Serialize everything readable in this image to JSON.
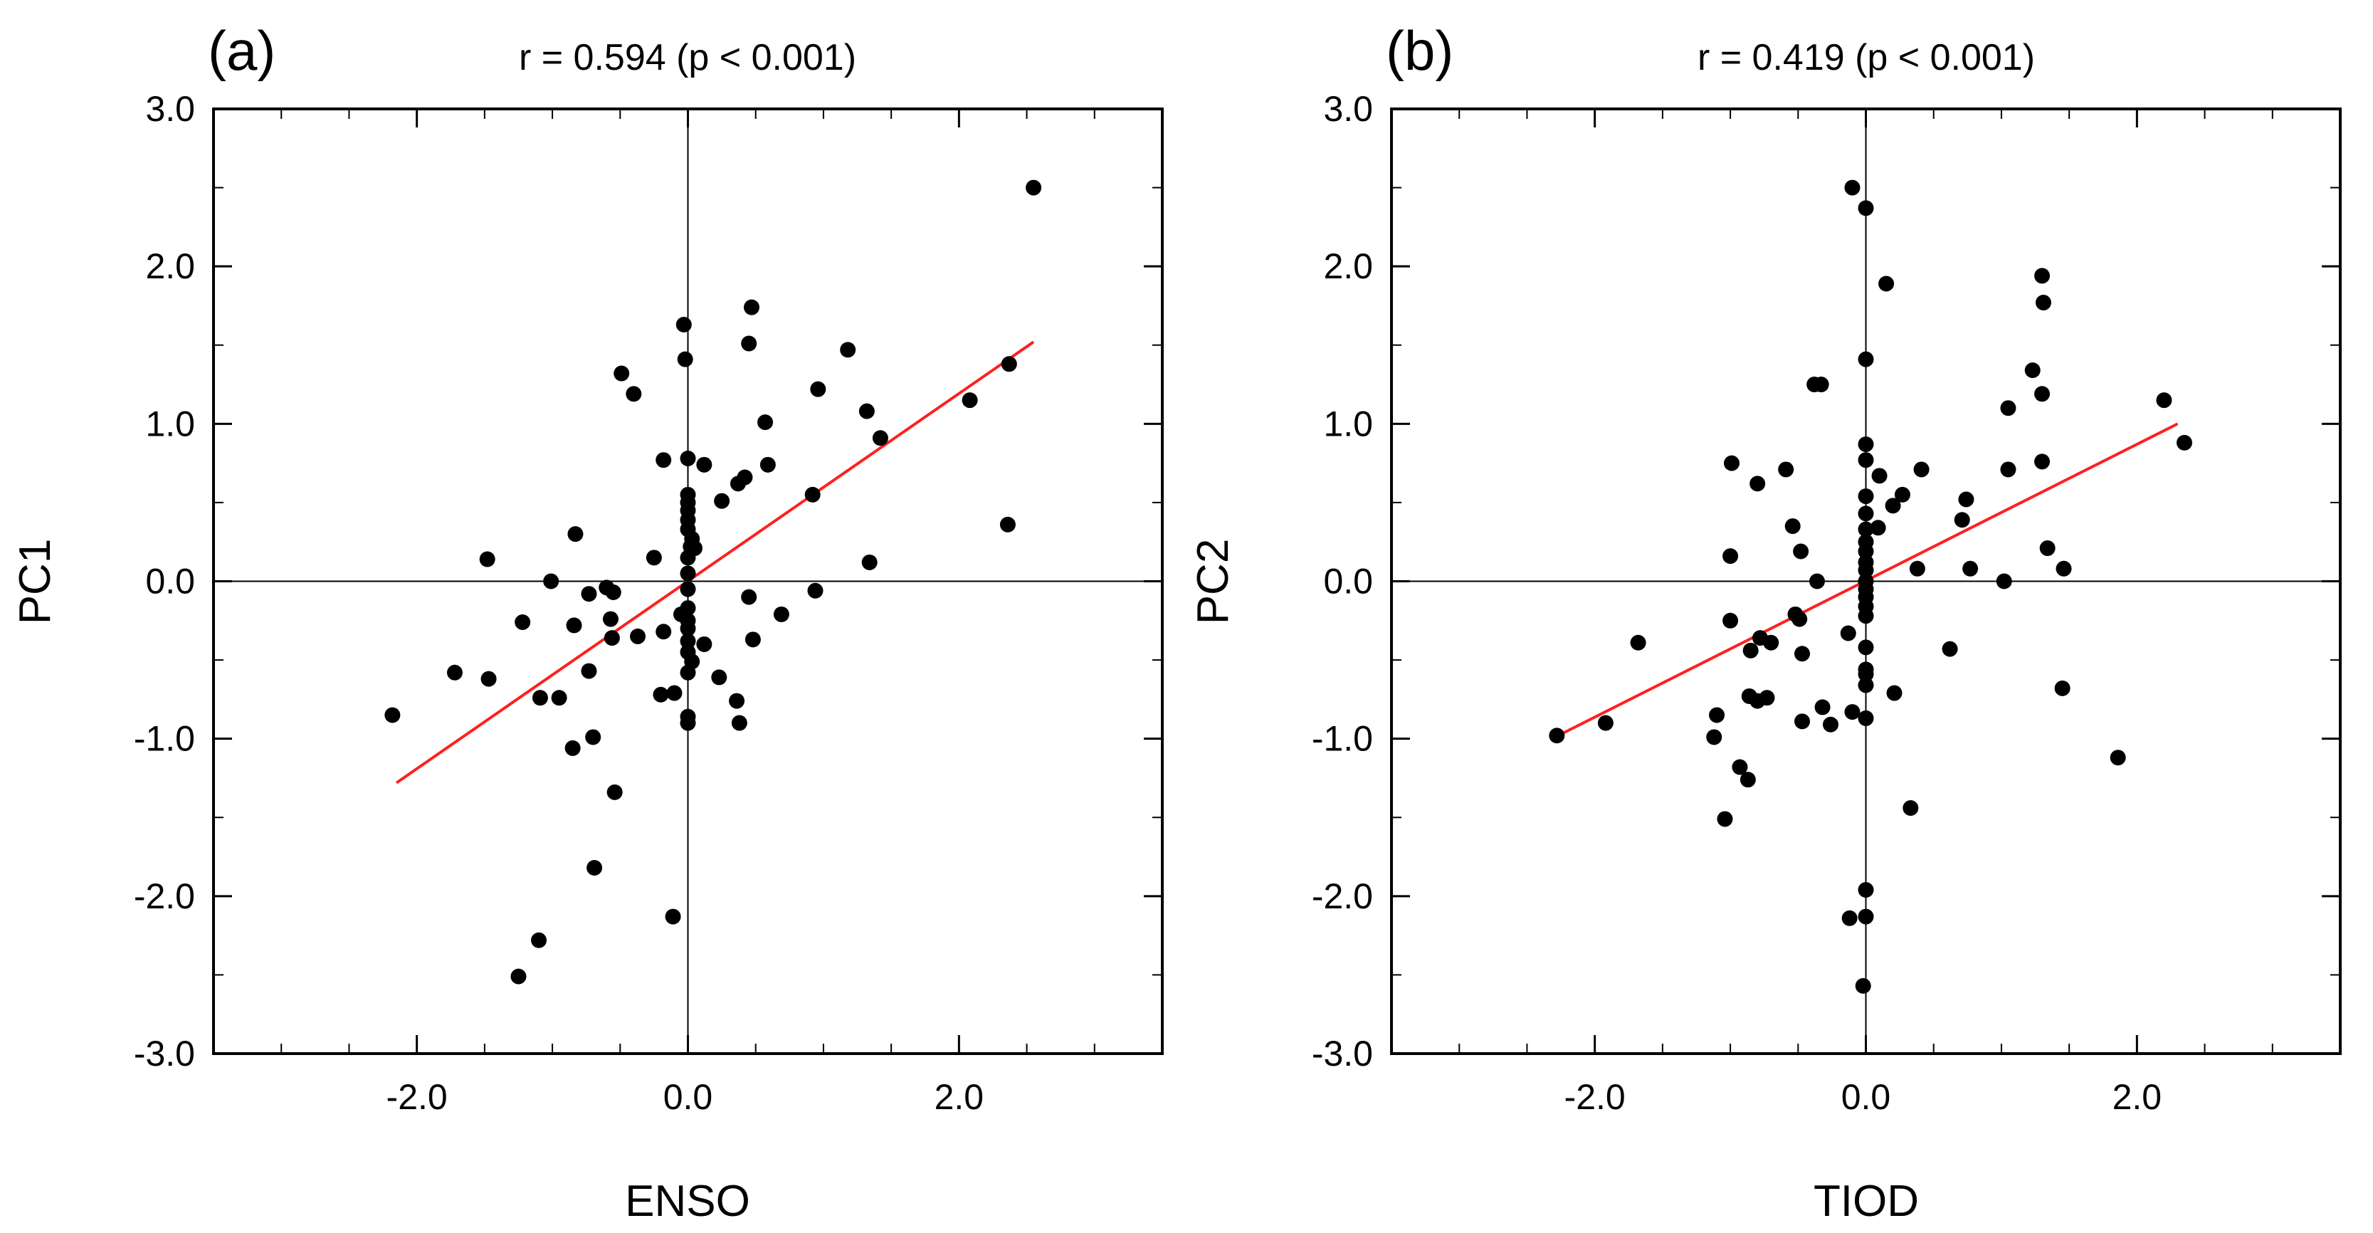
{
  "colors": {
    "points": "#000000",
    "regression": "#ff2020",
    "axes": "#000000"
  },
  "chart_data": [
    {
      "type": "scatter",
      "panel_label": "(a)",
      "title": "r = 0.594 (p < 0.001)",
      "xlabel": "ENSO",
      "ylabel": "PC1",
      "xlim": [
        -3.5,
        3.5
      ],
      "ylim": [
        -3.0,
        3.0
      ],
      "x_ticks": [
        -2.0,
        0.0,
        2.0
      ],
      "x_tick_labels": [
        "-2.0",
        "0.0",
        "2.0"
      ],
      "y_ticks": [
        -3.0,
        -2.0,
        -1.0,
        0.0,
        1.0,
        2.0,
        3.0
      ],
      "y_tick_labels": [
        "-3.0",
        "-2.0",
        "-1.0",
        "0.0",
        "1.0",
        "2.0",
        "3.0"
      ],
      "zero_lines": true,
      "regression": {
        "x": [
          -2.15,
          2.55
        ],
        "y": [
          -1.28,
          1.52
        ]
      },
      "points": [
        [
          2.55,
          2.5
        ],
        [
          0.47,
          1.74
        ],
        [
          -0.03,
          1.63
        ],
        [
          0.45,
          1.51
        ],
        [
          1.18,
          1.47
        ],
        [
          -0.02,
          1.41
        ],
        [
          -0.49,
          1.32
        ],
        [
          2.37,
          1.38
        ],
        [
          -0.4,
          1.19
        ],
        [
          0.96,
          1.22
        ],
        [
          2.08,
          1.15
        ],
        [
          1.32,
          1.08
        ],
        [
          0.57,
          1.01
        ],
        [
          1.42,
          0.91
        ],
        [
          -0.18,
          0.77
        ],
        [
          0.0,
          0.78
        ],
        [
          0.12,
          0.74
        ],
        [
          0.59,
          0.74
        ],
        [
          0.42,
          0.66
        ],
        [
          0.37,
          0.62
        ],
        [
          0.92,
          0.55
        ],
        [
          0.0,
          0.55
        ],
        [
          0.0,
          0.5
        ],
        [
          0.25,
          0.51
        ],
        [
          0.0,
          0.45
        ],
        [
          0.0,
          0.39
        ],
        [
          0.0,
          0.33
        ],
        [
          0.03,
          0.27
        ],
        [
          0.02,
          0.22
        ],
        [
          -0.83,
          0.3
        ],
        [
          0.05,
          0.21
        ],
        [
          2.36,
          0.36
        ],
        [
          1.34,
          0.12
        ],
        [
          -1.48,
          0.14
        ],
        [
          0.0,
          0.15
        ],
        [
          -0.25,
          0.15
        ],
        [
          0.0,
          0.05
        ],
        [
          -1.01,
          0.0
        ],
        [
          -0.6,
          -0.04
        ],
        [
          -0.55,
          -0.07
        ],
        [
          -0.73,
          -0.08
        ],
        [
          0.0,
          -0.05
        ],
        [
          0.45,
          -0.1
        ],
        [
          0.94,
          -0.06
        ],
        [
          0.0,
          -0.17
        ],
        [
          -0.05,
          -0.21
        ],
        [
          -0.57,
          -0.24
        ],
        [
          0.0,
          -0.25
        ],
        [
          -1.22,
          -0.26
        ],
        [
          -0.84,
          -0.28
        ],
        [
          0.0,
          -0.3
        ],
        [
          -0.18,
          -0.32
        ],
        [
          0.69,
          -0.21
        ],
        [
          -0.37,
          -0.35
        ],
        [
          -0.56,
          -0.36
        ],
        [
          0.48,
          -0.37
        ],
        [
          0.0,
          -0.38
        ],
        [
          0.12,
          -0.4
        ],
        [
          0.0,
          -0.45
        ],
        [
          0.03,
          -0.51
        ],
        [
          -0.73,
          -0.57
        ],
        [
          0.0,
          -0.58
        ],
        [
          -1.72,
          -0.58
        ],
        [
          -1.47,
          -0.62
        ],
        [
          0.23,
          -0.61
        ],
        [
          -0.1,
          -0.71
        ],
        [
          -0.2,
          -0.72
        ],
        [
          -1.09,
          -0.74
        ],
        [
          -0.95,
          -0.74
        ],
        [
          0.36,
          -0.76
        ],
        [
          -2.18,
          -0.85
        ],
        [
          0.0,
          -0.86
        ],
        [
          0.0,
          -0.9
        ],
        [
          0.38,
          -0.9
        ],
        [
          -0.7,
          -0.99
        ],
        [
          -0.85,
          -1.06
        ],
        [
          -0.54,
          -1.34
        ],
        [
          -0.69,
          -1.82
        ],
        [
          -0.11,
          -2.13
        ],
        [
          -1.1,
          -2.28
        ],
        [
          -1.25,
          -2.51
        ]
      ]
    },
    {
      "type": "scatter",
      "panel_label": "(b)",
      "title": "r = 0.419 (p < 0.001)",
      "xlabel": "TIOD",
      "ylabel": "PC2",
      "xlim": [
        -3.5,
        3.5
      ],
      "ylim": [
        -3.0,
        3.0
      ],
      "x_ticks": [
        -2.0,
        0.0,
        2.0
      ],
      "x_tick_labels": [
        "-2.0",
        "0.0",
        "2.0"
      ],
      "y_ticks": [
        -3.0,
        -2.0,
        -1.0,
        0.0,
        1.0,
        2.0,
        3.0
      ],
      "y_tick_labels": [
        "-3.0",
        "-2.0",
        "-1.0",
        "0.0",
        "1.0",
        "2.0",
        "3.0"
      ],
      "zero_lines": true,
      "regression": {
        "x": [
          -2.27,
          2.3
        ],
        "y": [
          -0.98,
          1.0
        ]
      },
      "points": [
        [
          -0.1,
          2.5
        ],
        [
          0.0,
          2.37
        ],
        [
          0.15,
          1.89
        ],
        [
          1.3,
          1.94
        ],
        [
          1.31,
          1.77
        ],
        [
          1.23,
          1.34
        ],
        [
          -0.38,
          1.25
        ],
        [
          -0.33,
          1.25
        ],
        [
          0.0,
          1.41
        ],
        [
          1.3,
          1.19
        ],
        [
          2.2,
          1.15
        ],
        [
          1.05,
          1.1
        ],
        [
          2.35,
          0.88
        ],
        [
          0.0,
          0.87
        ],
        [
          0.0,
          0.77
        ],
        [
          -0.99,
          0.75
        ],
        [
          1.3,
          0.76
        ],
        [
          -0.59,
          0.71
        ],
        [
          1.05,
          0.71
        ],
        [
          0.41,
          0.71
        ],
        [
          0.1,
          0.67
        ],
        [
          -0.8,
          0.62
        ],
        [
          0.0,
          0.54
        ],
        [
          0.27,
          0.55
        ],
        [
          0.74,
          0.52
        ],
        [
          0.2,
          0.48
        ],
        [
          0.0,
          0.43
        ],
        [
          0.71,
          0.39
        ],
        [
          -0.54,
          0.35
        ],
        [
          0.0,
          0.33
        ],
        [
          0.09,
          0.34
        ],
        [
          0.0,
          0.25
        ],
        [
          1.34,
          0.21
        ],
        [
          -0.48,
          0.19
        ],
        [
          0.0,
          0.19
        ],
        [
          -1.0,
          0.16
        ],
        [
          0.0,
          0.12
        ],
        [
          0.0,
          0.07
        ],
        [
          1.46,
          0.08
        ],
        [
          0.77,
          0.08
        ],
        [
          0.38,
          0.08
        ],
        [
          -0.36,
          0.0
        ],
        [
          1.02,
          0.0
        ],
        [
          0.0,
          0.0
        ],
        [
          0.0,
          -0.05
        ],
        [
          0.0,
          -0.1
        ],
        [
          0.0,
          -0.16
        ],
        [
          0.0,
          -0.22
        ],
        [
          -0.52,
          -0.21
        ],
        [
          -0.49,
          -0.24
        ],
        [
          -1.0,
          -0.25
        ],
        [
          -0.13,
          -0.33
        ],
        [
          -0.78,
          -0.36
        ],
        [
          -1.68,
          -0.39
        ],
        [
          0.0,
          -0.42
        ],
        [
          -0.7,
          -0.39
        ],
        [
          0.62,
          -0.43
        ],
        [
          -0.85,
          -0.44
        ],
        [
          -0.47,
          -0.46
        ],
        [
          0.0,
          -0.56
        ],
        [
          0.0,
          -0.59
        ],
        [
          -0.86,
          -0.73
        ],
        [
          -0.73,
          -0.74
        ],
        [
          -0.8,
          -0.76
        ],
        [
          0.0,
          -0.66
        ],
        [
          0.21,
          -0.71
        ],
        [
          -0.32,
          -0.8
        ],
        [
          -0.47,
          -0.89
        ],
        [
          0.0,
          -0.87
        ],
        [
          -0.26,
          -0.91
        ],
        [
          -1.92,
          -0.9
        ],
        [
          -1.1,
          -0.85
        ],
        [
          -0.1,
          -0.83
        ],
        [
          1.45,
          -0.68
        ],
        [
          -2.28,
          -0.98
        ],
        [
          -1.12,
          -0.99
        ],
        [
          1.86,
          -1.12
        ],
        [
          -0.93,
          -1.18
        ],
        [
          -0.87,
          -1.26
        ],
        [
          0.33,
          -1.44
        ],
        [
          -1.04,
          -1.51
        ],
        [
          0.0,
          -1.96
        ],
        [
          -0.12,
          -2.14
        ],
        [
          0.0,
          -2.13
        ],
        [
          -0.02,
          -2.57
        ]
      ]
    }
  ]
}
